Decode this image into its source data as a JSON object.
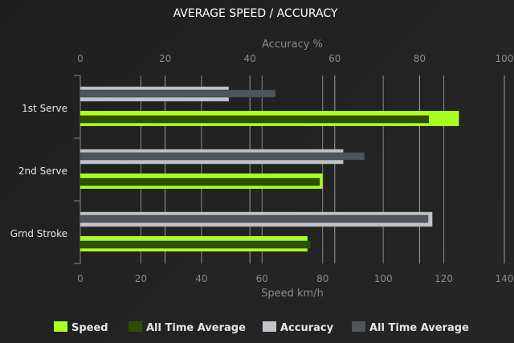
{
  "chart_data": {
    "type": "bar",
    "orientation": "horizontal",
    "title": "AVERAGE SPEED / ACCURACY",
    "categories": [
      "1st Serve",
      "2nd Serve",
      "Grnd Stroke"
    ],
    "top_axis": {
      "label": "Accuracy %",
      "range": [
        0,
        100
      ],
      "ticks": [
        0,
        20,
        40,
        60,
        80,
        100
      ]
    },
    "bottom_axis": {
      "label": "Speed km/h",
      "range": [
        0,
        140
      ],
      "ticks": [
        0,
        20,
        40,
        60,
        80,
        100,
        120,
        140
      ]
    },
    "grid": true,
    "legend_position": "bottom",
    "series": [
      {
        "name": "Speed",
        "axis": "bottom",
        "color": "#aaff22",
        "values": [
          125,
          80,
          75
        ]
      },
      {
        "name": "All Time Average",
        "axis": "bottom",
        "color": "#2f4f00",
        "values": [
          115,
          79,
          76
        ]
      },
      {
        "name": "Accuracy",
        "axis": "top",
        "color": "#c0c4c8",
        "values": [
          35,
          62,
          83
        ]
      },
      {
        "name": "All Time Average",
        "axis": "top",
        "color": "#50555c",
        "values": [
          46,
          67,
          82
        ]
      }
    ]
  }
}
